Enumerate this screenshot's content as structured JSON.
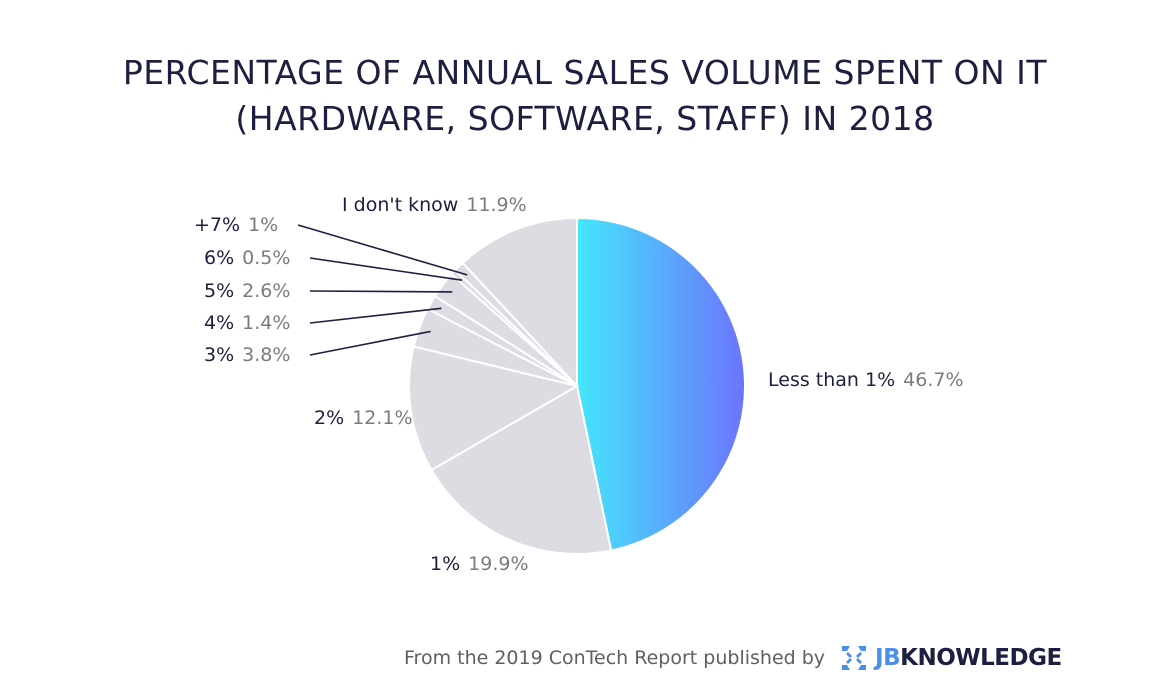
{
  "chart_data": {
    "type": "pie",
    "title_line1": "PERCENTAGE OF ANNUAL SALES VOLUME SPENT ON IT",
    "title_line2": "(HARDWARE, SOFTWARE, STAFF) IN 2018",
    "slices": [
      {
        "label": "Less than 1%",
        "value_label": "46.7%",
        "value": 46.7
      },
      {
        "label": "1%",
        "value_label": "19.9%",
        "value": 19.9
      },
      {
        "label": "2%",
        "value_label": "12.1%",
        "value": 12.1
      },
      {
        "label": "3%",
        "value_label": "3.8%",
        "value": 3.8
      },
      {
        "label": "4%",
        "value_label": "1.4%",
        "value": 1.4
      },
      {
        "label": "5%",
        "value_label": "2.6%",
        "value": 2.6
      },
      {
        "label": "6%",
        "value_label": "0.5%",
        "value": 0.5
      },
      {
        "label": "+7%",
        "value_label": "1%",
        "value": 1.0
      },
      {
        "label": "I don't know",
        "value_label": "11.9%",
        "value": 11.9
      }
    ],
    "highlight_color_start": "#45e6fb",
    "highlight_color_end": "#6b74fd",
    "slice_color": "#dcdce2",
    "separator_color": "#ffffff"
  },
  "footer": {
    "text": "From the 2019 ConTech Report published by",
    "logo_prefix": "JB",
    "logo_suffix": "KNOWLEDGE",
    "logo_icon": "jbknowledge-logo-icon",
    "logo_color": "#4a8fe8"
  }
}
